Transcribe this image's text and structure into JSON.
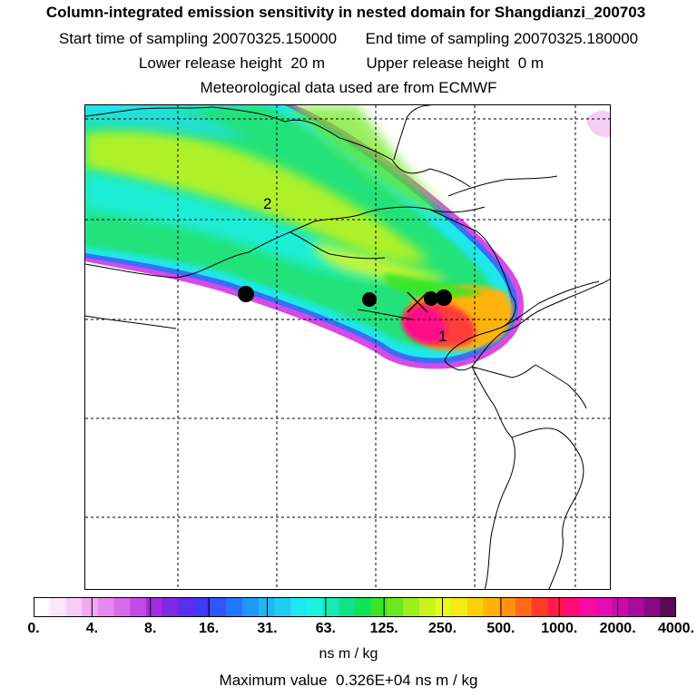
{
  "header": {
    "title": "Column-integrated emission sensitivity in nested domain for Shangdianzi_200703",
    "start_label": "Start time of sampling",
    "start_value": "20070325.150000",
    "end_label": "End time of sampling",
    "end_value": "20070325.180000",
    "lower_label": "Lower release height",
    "lower_value": "20 m",
    "upper_label": "Upper release height",
    "upper_value": "0 m",
    "met_line": "Meteorological data used are from ECMWF"
  },
  "map": {
    "point_labels": [
      "2",
      "1"
    ],
    "marker_count": 4,
    "receptor_marker": "x"
  },
  "colorbar": {
    "colors": [
      "#ffffff",
      "#fbe6fb",
      "#f7ccf7",
      "#f0aaf2",
      "#e689ee",
      "#d96aea",
      "#c44ae6",
      "#a52ae2",
      "#7f28e6",
      "#5a2eec",
      "#3f38f4",
      "#2f56fa",
      "#1f78fc",
      "#1f98f8",
      "#20b6f2",
      "#22ccf0",
      "#1ee8f0",
      "#1cf2de",
      "#17eab4",
      "#10e28c",
      "#10e25a",
      "#3ae428",
      "#6ee81e",
      "#9cee1c",
      "#c8f41c",
      "#eaf81e",
      "#f8ea14",
      "#fcd00c",
      "#ffb208",
      "#ff920e",
      "#ff6a18",
      "#ff3c26",
      "#ff1a4a",
      "#ff0c78",
      "#f80aa4",
      "#e40cb2",
      "#c80ca8",
      "#a80c9c",
      "#880a84",
      "#5a0a52"
    ],
    "tick_labels": [
      "0.",
      "4.",
      "8.",
      "16.",
      "31.",
      "63.",
      "125.",
      "250.",
      "500.",
      "1000.",
      "2000.",
      "4000."
    ],
    "unit": "ns m / kg"
  },
  "footer": {
    "max_label": "Maximum value",
    "max_value": "0.326E+04 ns m / kg"
  }
}
